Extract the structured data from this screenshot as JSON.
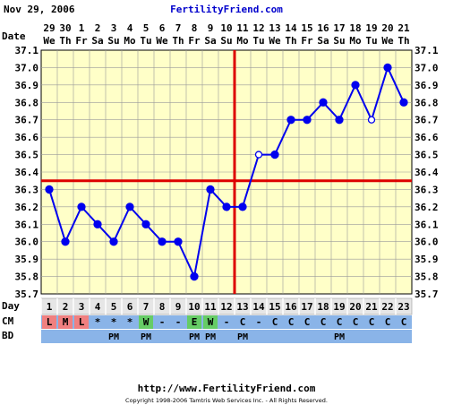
{
  "header": {
    "date": "Nov 29, 2006",
    "site": "FertilityFriend.com"
  },
  "labels": {
    "date_row": "Date",
    "day_row": "Day",
    "cm_row": "CM",
    "bd_row": "BD"
  },
  "footer": {
    "url": "http://www.FertilityFriend.com",
    "copyright": "Copyright 1998-2006 Tamtris Web Services Inc. - All Rights Reserved."
  },
  "colors": {
    "plot_bg": "#ffffc8",
    "line": "#0000ee",
    "coverline": "#dd0000",
    "title_link": "#0000cc",
    "cm_red": "#f08080",
    "cm_green": "#66cc66",
    "cm_blue": "#8ab4e8",
    "bd_blue": "#8ab4e8",
    "day_bg": "#e6e6e6"
  },
  "chart_data": {
    "type": "line",
    "title": "",
    "xlabel": "Day",
    "ylabel": "",
    "ylim": [
      35.7,
      37.1
    ],
    "yticks": [
      "35.7",
      "35.8",
      "35.9",
      "36.0",
      "36.1",
      "36.2",
      "36.3",
      "36.4",
      "36.5",
      "36.6",
      "36.7",
      "36.8",
      "36.9",
      "37.0",
      "37.1"
    ],
    "grid": true,
    "days": [
      1,
      2,
      3,
      4,
      5,
      6,
      7,
      8,
      9,
      10,
      11,
      12,
      13,
      14,
      15,
      16,
      17,
      18,
      19,
      20,
      21,
      22,
      23
    ],
    "dates": [
      "29",
      "30",
      "1",
      "2",
      "3",
      "4",
      "5",
      "6",
      "7",
      "8",
      "9",
      "10",
      "11",
      "12",
      "13",
      "14",
      "15",
      "16",
      "17",
      "18",
      "19",
      "20",
      "21"
    ],
    "weekdays": [
      "We",
      "Th",
      "Fr",
      "Sa",
      "Su",
      "Mo",
      "Tu",
      "We",
      "Th",
      "Fr",
      "Sa",
      "Su",
      "Mo",
      "Tu",
      "We",
      "Th",
      "Fr",
      "Sa",
      "Su",
      "Mo",
      "Tu",
      "We",
      "Th"
    ],
    "temps": [
      36.3,
      36.0,
      36.2,
      36.1,
      36.0,
      36.2,
      36.1,
      36.0,
      36.0,
      35.8,
      36.3,
      36.2,
      36.2,
      36.5,
      36.5,
      36.7,
      36.7,
      36.8,
      36.7,
      36.9,
      36.7,
      37.0,
      36.8
    ],
    "open_points": [
      14,
      21
    ],
    "coverline": 36.35,
    "ovulation_day": 13,
    "cervical_mucus": [
      "L",
      "M",
      "L",
      "*",
      "*",
      "*",
      "W",
      "-",
      "-",
      "E",
      "W",
      "-",
      "C",
      "-",
      "C",
      "C",
      "C",
      "C",
      "C",
      "C",
      "C",
      "C",
      "C"
    ],
    "intercourse": [
      "",
      "",
      "",
      "",
      "PM",
      "",
      "PM",
      "",
      "",
      "PM",
      "PM",
      "",
      "PM",
      "",
      "",
      "",
      "",
      "",
      "PM",
      "",
      "",
      "",
      ""
    ]
  }
}
